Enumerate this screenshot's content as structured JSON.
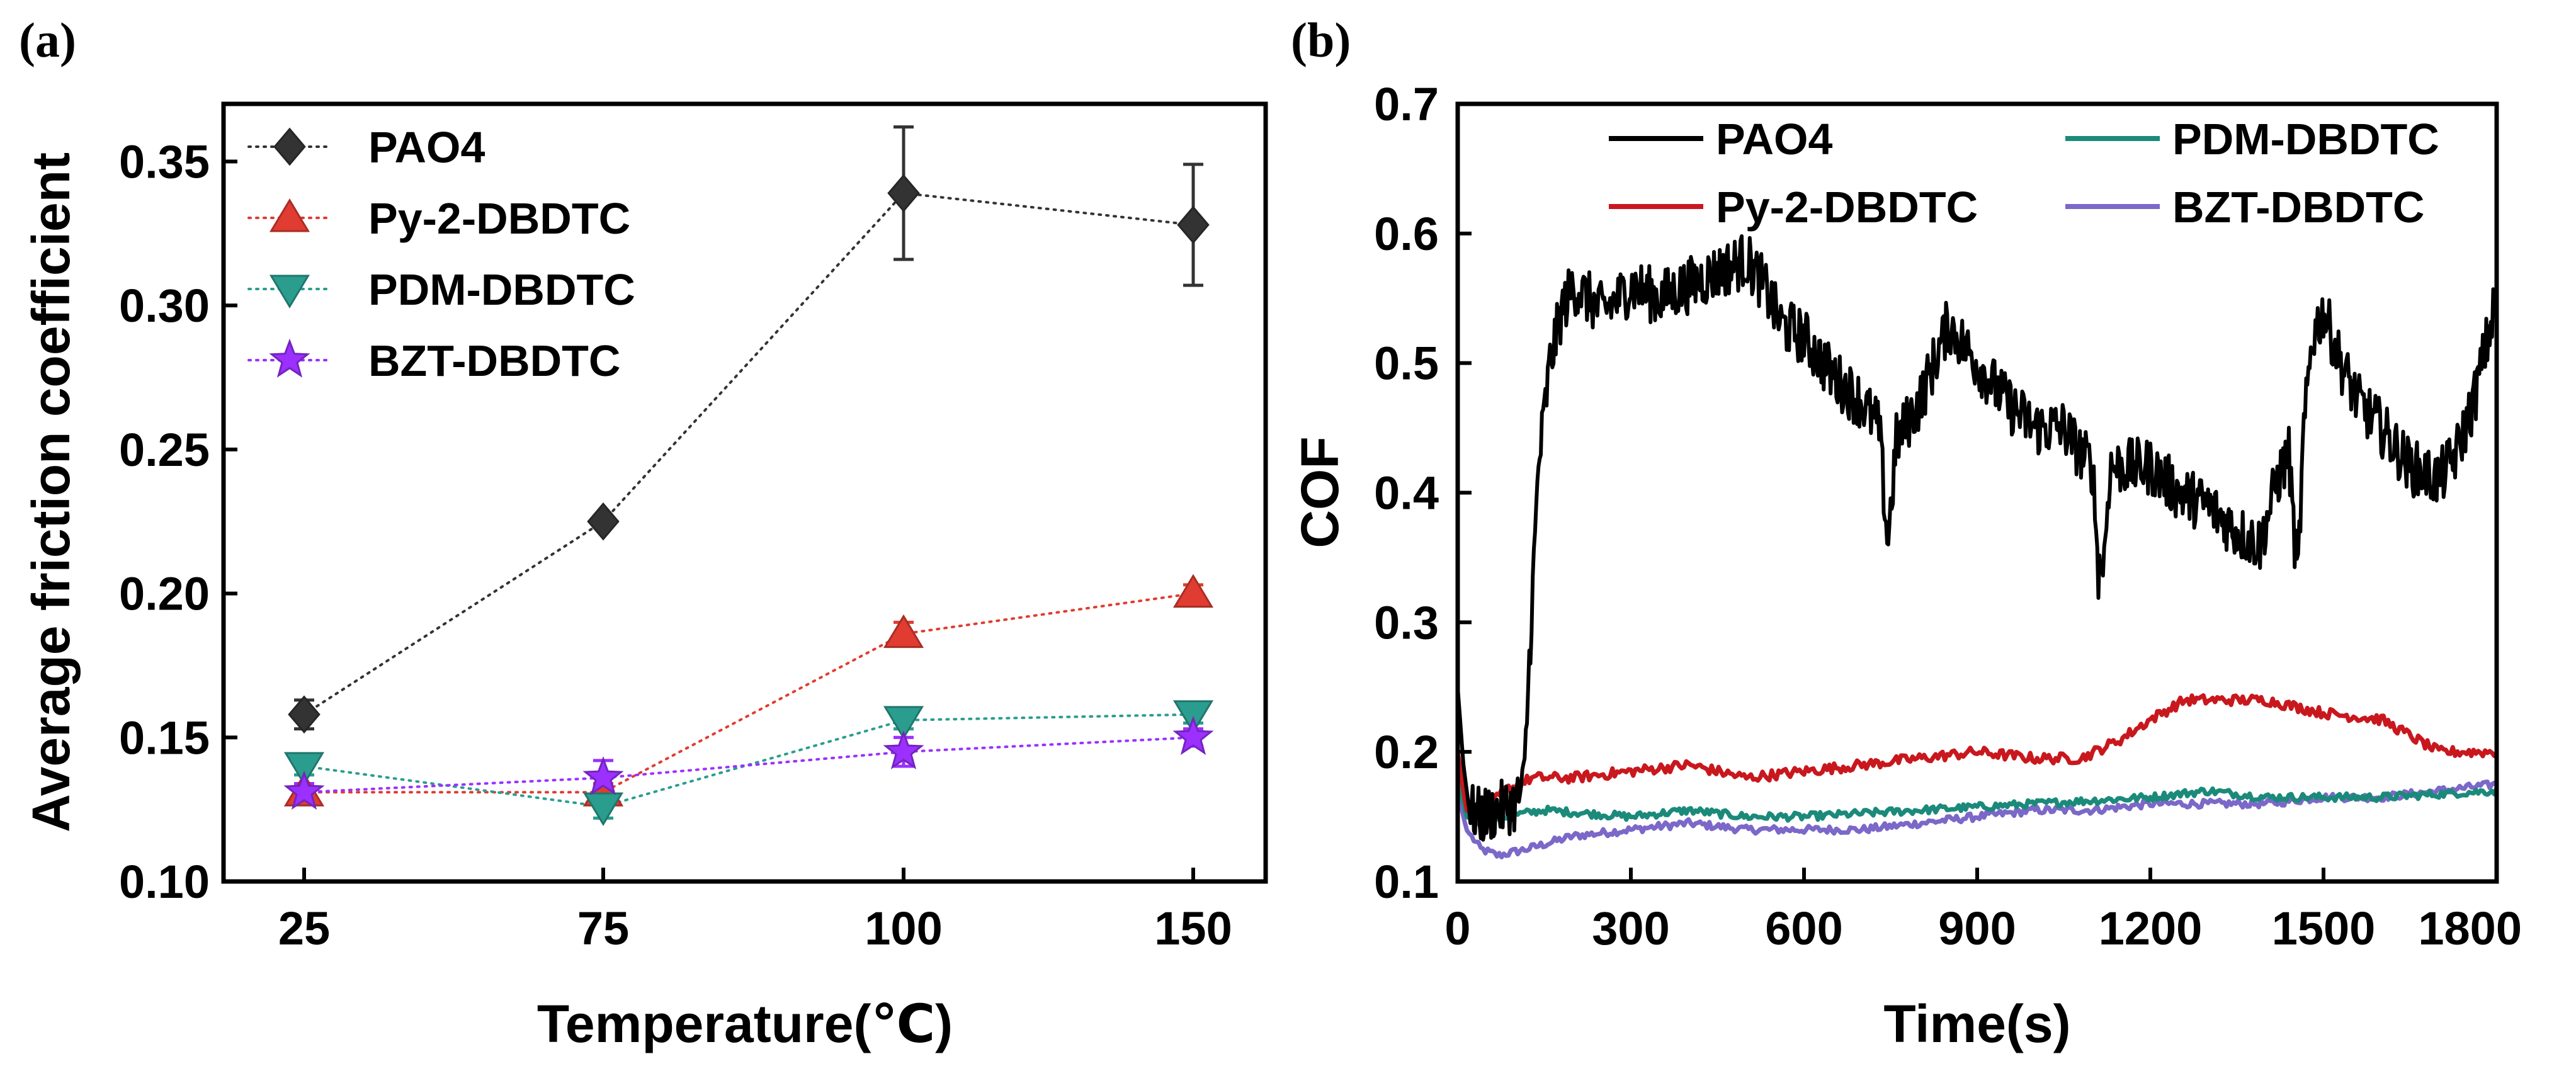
{
  "panel_labels": [
    "(a)",
    "(b)"
  ],
  "chart_data": [
    {
      "type": "scatter",
      "title": "",
      "xlabel": "Temperature(℃)",
      "ylabel": "Average friction coefficient",
      "categories": [
        "25",
        "75",
        "100",
        "150"
      ],
      "ylim": [
        0.1,
        0.37
      ],
      "yticks": [
        0.1,
        0.15,
        0.2,
        0.25,
        0.3,
        0.35
      ],
      "ytick_labels": [
        "0.10",
        "0.15",
        "0.20",
        "0.25",
        "0.30",
        "0.35"
      ],
      "series": [
        {
          "name": "PAO4",
          "marker": "diamond",
          "color": "#333333",
          "values": [
            0.158,
            0.225,
            0.339,
            0.328
          ],
          "errors": [
            0.005,
            0.002,
            0.023,
            0.021
          ]
        },
        {
          "name": "Py-2-DBDTC",
          "marker": "triangle-up",
          "color": "#e03c31",
          "values": [
            0.131,
            0.131,
            0.186,
            0.2
          ],
          "errors": [
            0.003,
            0.003,
            0.004,
            0.003
          ]
        },
        {
          "name": "PDM-DBDTC",
          "marker": "triangle-down",
          "color": "#2a9d8f",
          "values": [
            0.14,
            0.126,
            0.156,
            0.158
          ],
          "errors": [
            0.003,
            0.004,
            0.003,
            0.003
          ]
        },
        {
          "name": "BZT-DBDTC",
          "marker": "star",
          "color": "#9b30ff",
          "values": [
            0.131,
            0.136,
            0.145,
            0.15
          ],
          "errors": [
            0.003,
            0.006,
            0.005,
            0.003
          ]
        }
      ],
      "legend_position": "top-left"
    },
    {
      "type": "line",
      "title": "",
      "xlabel": "Time(s)",
      "ylabel": "COF",
      "xlim": [
        0,
        1800
      ],
      "ylim": [
        0.1,
        0.7
      ],
      "xticks": [
        0,
        300,
        600,
        900,
        1200,
        1500,
        1800
      ],
      "xtick_labels": [
        "0",
        "300",
        "600",
        "900",
        "1200",
        "1500",
        "1800"
      ],
      "yticks": [
        0.1,
        0.2,
        0.3,
        0.4,
        0.5,
        0.6,
        0.7
      ],
      "ytick_labels": [
        "0.1",
        "0.2",
        "0.3",
        "0.4",
        "0.5",
        "0.6",
        "0.7"
      ],
      "legend_position": "top",
      "series": [
        {
          "name": "PAO4",
          "color": "#000000",
          "noise": 0.022,
          "points": [
            [
              0,
              0.25
            ],
            [
              10,
              0.19
            ],
            [
              20,
              0.155
            ],
            [
              40,
              0.15
            ],
            [
              70,
              0.155
            ],
            [
              100,
              0.16
            ],
            [
              115,
              0.175
            ],
            [
              125,
              0.28
            ],
            [
              140,
              0.42
            ],
            [
              160,
              0.5
            ],
            [
              180,
              0.54
            ],
            [
              200,
              0.56
            ],
            [
              250,
              0.54
            ],
            [
              280,
              0.55
            ],
            [
              300,
              0.56
            ],
            [
              350,
              0.55
            ],
            [
              400,
              0.56
            ],
            [
              450,
              0.57
            ],
            [
              500,
              0.58
            ],
            [
              530,
              0.56
            ],
            [
              560,
              0.53
            ],
            [
              600,
              0.52
            ],
            [
              650,
              0.49
            ],
            [
              700,
              0.47
            ],
            [
              730,
              0.45
            ],
            [
              745,
              0.36
            ],
            [
              760,
              0.44
            ],
            [
              800,
              0.47
            ],
            [
              850,
              0.53
            ],
            [
              900,
              0.5
            ],
            [
              950,
              0.47
            ],
            [
              1000,
              0.45
            ],
            [
              1050,
              0.45
            ],
            [
              1080,
              0.43
            ],
            [
              1100,
              0.42
            ],
            [
              1110,
              0.34
            ],
            [
              1120,
              0.35
            ],
            [
              1130,
              0.42
            ],
            [
              1200,
              0.42
            ],
            [
              1250,
              0.4
            ],
            [
              1300,
              0.39
            ],
            [
              1350,
              0.37
            ],
            [
              1390,
              0.36
            ],
            [
              1420,
              0.41
            ],
            [
              1440,
              0.43
            ],
            [
              1455,
              0.33
            ],
            [
              1465,
              0.44
            ],
            [
              1480,
              0.52
            ],
            [
              1500,
              0.54
            ],
            [
              1530,
              0.5
            ],
            [
              1560,
              0.47
            ],
            [
              1600,
              0.45
            ],
            [
              1650,
              0.42
            ],
            [
              1700,
              0.41
            ],
            [
              1730,
              0.43
            ],
            [
              1760,
              0.47
            ],
            [
              1800,
              0.55
            ]
          ]
        },
        {
          "name": "Py-2-DBDTC",
          "color": "#c8181e",
          "noise": 0.004,
          "points": [
            [
              0,
              0.2
            ],
            [
              15,
              0.155
            ],
            [
              40,
              0.15
            ],
            [
              80,
              0.17
            ],
            [
              130,
              0.18
            ],
            [
              200,
              0.18
            ],
            [
              300,
              0.185
            ],
            [
              400,
              0.19
            ],
            [
              500,
              0.18
            ],
            [
              600,
              0.185
            ],
            [
              700,
              0.19
            ],
            [
              800,
              0.195
            ],
            [
              900,
              0.2
            ],
            [
              1000,
              0.195
            ],
            [
              1080,
              0.195
            ],
            [
              1150,
              0.21
            ],
            [
              1200,
              0.225
            ],
            [
              1260,
              0.24
            ],
            [
              1300,
              0.24
            ],
            [
              1400,
              0.24
            ],
            [
              1500,
              0.23
            ],
            [
              1600,
              0.225
            ],
            [
              1700,
              0.2
            ],
            [
              1800,
              0.2
            ]
          ]
        },
        {
          "name": "PDM-DBDTC",
          "color": "#1b8a7a",
          "noise": 0.003,
          "points": [
            [
              0,
              0.18
            ],
            [
              15,
              0.15
            ],
            [
              40,
              0.145
            ],
            [
              80,
              0.15
            ],
            [
              150,
              0.155
            ],
            [
              300,
              0.15
            ],
            [
              400,
              0.155
            ],
            [
              500,
              0.15
            ],
            [
              600,
              0.15
            ],
            [
              800,
              0.155
            ],
            [
              1000,
              0.16
            ],
            [
              1200,
              0.165
            ],
            [
              1300,
              0.17
            ],
            [
              1400,
              0.165
            ],
            [
              1600,
              0.165
            ],
            [
              1800,
              0.17
            ]
          ]
        },
        {
          "name": "BZT-DBDTC",
          "color": "#7b68c8",
          "noise": 0.003,
          "points": [
            [
              0,
              0.17
            ],
            [
              15,
              0.14
            ],
            [
              40,
              0.125
            ],
            [
              70,
              0.12
            ],
            [
              120,
              0.125
            ],
            [
              200,
              0.135
            ],
            [
              300,
              0.14
            ],
            [
              400,
              0.145
            ],
            [
              500,
              0.14
            ],
            [
              600,
              0.14
            ],
            [
              700,
              0.14
            ],
            [
              800,
              0.145
            ],
            [
              900,
              0.15
            ],
            [
              1000,
              0.155
            ],
            [
              1100,
              0.155
            ],
            [
              1200,
              0.16
            ],
            [
              1300,
              0.16
            ],
            [
              1400,
              0.16
            ],
            [
              1500,
              0.165
            ],
            [
              1600,
              0.165
            ],
            [
              1700,
              0.17
            ],
            [
              1800,
              0.175
            ]
          ]
        }
      ]
    }
  ]
}
